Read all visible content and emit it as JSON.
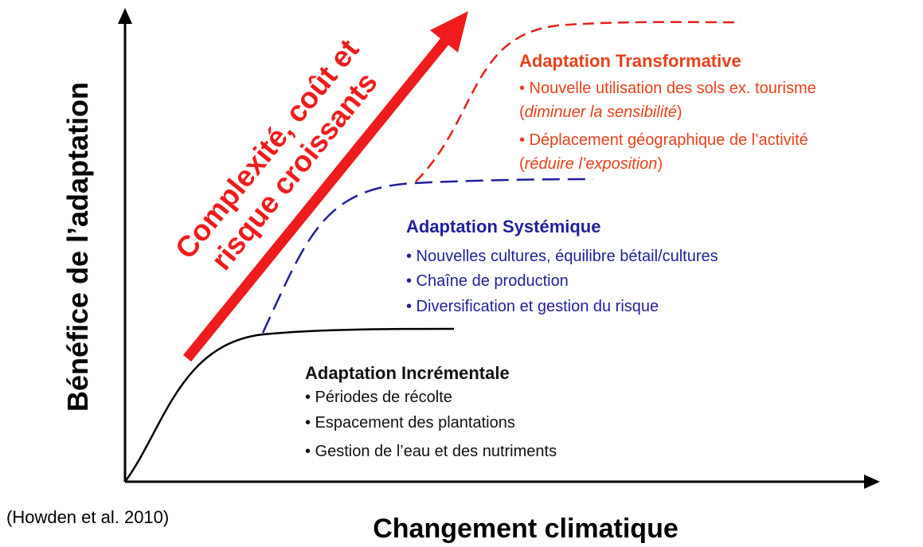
{
  "axes": {
    "y_label": "Bénéfice de l’adaptation",
    "x_label": "Changement climatique"
  },
  "arrow_label": [
    "Complexité, coût et",
    "risque croissants"
  ],
  "citation": "(Howden et al. 2010)",
  "transformative": {
    "title": "Adaptation Transformative",
    "items": [
      {
        "text": "• Nouvelle utilisation des sols ex. tourisme",
        "note": {
          "open": "(",
          "italic": "diminuer la sensibilité",
          "close": ")"
        }
      },
      {
        "text": "• Déplacement géographique de l’activité",
        "note": {
          "open": "(",
          "italic": "réduire l’exposition",
          "close": ")"
        }
      }
    ]
  },
  "systemic": {
    "title": "Adaptation Systémique",
    "items": [
      "• Nouvelles cultures, équilibre bétail/cultures",
      "• Chaîne de production",
      "• Diversification et gestion du risque"
    ]
  },
  "incremental": {
    "title": "Adaptation Incrémentale",
    "items": [
      "• Périodes de récolte",
      "• Espacement des plantations",
      "• Gestion de l’eau et des nutriments"
    ]
  }
}
